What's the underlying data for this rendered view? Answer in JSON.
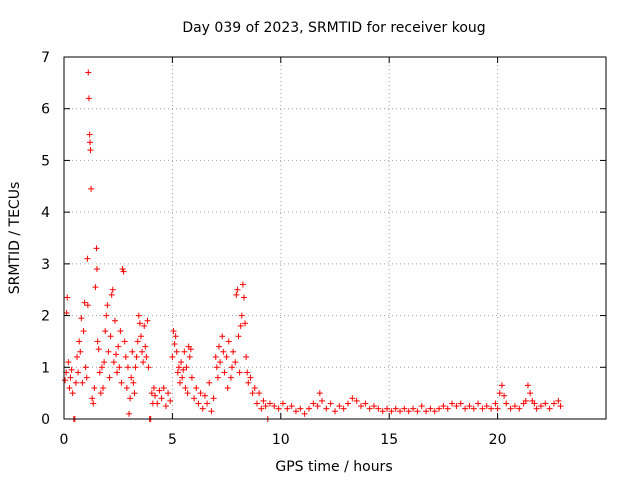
{
  "chart_data": {
    "type": "scatter",
    "title": "Day 039 of 2023, SRMTID for receiver koug",
    "xlabel": "GPS time / hours",
    "ylabel": "SRMTID / TECUs",
    "xlim": [
      0,
      25
    ],
    "ylim": [
      0,
      7
    ],
    "xticks": [
      0,
      5,
      10,
      15,
      20
    ],
    "yticks": [
      0,
      1,
      2,
      3,
      4,
      5,
      6,
      7
    ],
    "grid": true,
    "marker": "+",
    "color": "#ff0000",
    "series": [
      {
        "name": "SRMTID",
        "points": [
          [
            0.05,
            0.75
          ],
          [
            0.1,
            0.9
          ],
          [
            0.12,
            2.05
          ],
          [
            0.15,
            2.35
          ],
          [
            0.2,
            1.1
          ],
          [
            0.25,
            0.6
          ],
          [
            0.3,
            0.8
          ],
          [
            0.35,
            0.95
          ],
          [
            0.4,
            0.5
          ],
          [
            0.45,
            0.0
          ],
          [
            0.5,
            0.0
          ],
          [
            0.55,
            0.7
          ],
          [
            0.6,
            1.2
          ],
          [
            0.65,
            0.9
          ],
          [
            0.7,
            1.5
          ],
          [
            0.75,
            1.3
          ],
          [
            0.8,
            1.95
          ],
          [
            0.85,
            0.7
          ],
          [
            0.9,
            1.7
          ],
          [
            0.95,
            2.25
          ],
          [
            1.0,
            1.0
          ],
          [
            1.05,
            0.8
          ],
          [
            1.08,
            3.1
          ],
          [
            1.1,
            2.2
          ],
          [
            1.12,
            6.7
          ],
          [
            1.15,
            6.2
          ],
          [
            1.18,
            5.5
          ],
          [
            1.2,
            5.35
          ],
          [
            1.22,
            5.2
          ],
          [
            1.25,
            4.45
          ],
          [
            1.3,
            0.4
          ],
          [
            1.35,
            0.3
          ],
          [
            1.4,
            0.6
          ],
          [
            1.45,
            2.55
          ],
          [
            1.5,
            3.3
          ],
          [
            1.52,
            2.9
          ],
          [
            1.55,
            1.5
          ],
          [
            1.6,
            1.35
          ],
          [
            1.65,
            0.9
          ],
          [
            1.7,
            0.5
          ],
          [
            1.75,
            1.0
          ],
          [
            1.8,
            0.6
          ],
          [
            1.85,
            1.1
          ],
          [
            1.9,
            1.7
          ],
          [
            1.95,
            2.0
          ],
          [
            2.0,
            2.2
          ],
          [
            2.05,
            1.3
          ],
          [
            2.1,
            0.8
          ],
          [
            2.15,
            1.6
          ],
          [
            2.2,
            2.4
          ],
          [
            2.25,
            2.5
          ],
          [
            2.3,
            1.1
          ],
          [
            2.35,
            1.9
          ],
          [
            2.4,
            1.25
          ],
          [
            2.45,
            0.9
          ],
          [
            2.5,
            1.4
          ],
          [
            2.55,
            1.0
          ],
          [
            2.6,
            1.7
          ],
          [
            2.65,
            0.7
          ],
          [
            2.7,
            2.9
          ],
          [
            2.75,
            2.85
          ],
          [
            2.8,
            1.5
          ],
          [
            2.85,
            1.2
          ],
          [
            2.9,
            0.6
          ],
          [
            2.95,
            1.0
          ],
          [
            3.0,
            0.1
          ],
          [
            3.05,
            0.4
          ],
          [
            3.1,
            0.8
          ],
          [
            3.15,
            1.3
          ],
          [
            3.2,
            0.7
          ],
          [
            3.25,
            0.5
          ],
          [
            3.3,
            1.0
          ],
          [
            3.35,
            1.2
          ],
          [
            3.4,
            1.5
          ],
          [
            3.45,
            2.0
          ],
          [
            3.5,
            1.85
          ],
          [
            3.55,
            1.6
          ],
          [
            3.6,
            1.3
          ],
          [
            3.65,
            1.1
          ],
          [
            3.7,
            1.8
          ],
          [
            3.75,
            1.4
          ],
          [
            3.8,
            1.2
          ],
          [
            3.85,
            1.9
          ],
          [
            3.9,
            1.0
          ],
          [
            3.95,
            0.0
          ],
          [
            4.0,
            0.0
          ],
          [
            4.05,
            0.5
          ],
          [
            4.1,
            0.3
          ],
          [
            4.15,
            0.6
          ],
          [
            4.2,
            0.45
          ],
          [
            4.3,
            0.3
          ],
          [
            4.4,
            0.55
          ],
          [
            4.5,
            0.4
          ],
          [
            4.6,
            0.6
          ],
          [
            4.7,
            0.25
          ],
          [
            4.8,
            0.5
          ],
          [
            4.9,
            0.35
          ],
          [
            5.0,
            1.2
          ],
          [
            5.05,
            1.7
          ],
          [
            5.1,
            1.45
          ],
          [
            5.15,
            1.6
          ],
          [
            5.2,
            1.3
          ],
          [
            5.25,
            0.9
          ],
          [
            5.3,
            1.0
          ],
          [
            5.35,
            0.7
          ],
          [
            5.4,
            1.1
          ],
          [
            5.45,
            0.8
          ],
          [
            5.5,
            0.95
          ],
          [
            5.55,
            1.3
          ],
          [
            5.6,
            0.6
          ],
          [
            5.65,
            1.0
          ],
          [
            5.7,
            0.5
          ],
          [
            5.75,
            1.4
          ],
          [
            5.8,
            1.2
          ],
          [
            5.85,
            1.35
          ],
          [
            5.9,
            0.8
          ],
          [
            6.0,
            0.4
          ],
          [
            6.1,
            0.6
          ],
          [
            6.2,
            0.3
          ],
          [
            6.3,
            0.5
          ],
          [
            6.4,
            0.2
          ],
          [
            6.5,
            0.45
          ],
          [
            6.6,
            0.3
          ],
          [
            6.7,
            0.7
          ],
          [
            6.8,
            0.15
          ],
          [
            6.9,
            0.4
          ],
          [
            7.0,
            1.2
          ],
          [
            7.05,
            1.0
          ],
          [
            7.1,
            0.8
          ],
          [
            7.15,
            1.4
          ],
          [
            7.2,
            1.1
          ],
          [
            7.3,
            1.6
          ],
          [
            7.35,
            1.3
          ],
          [
            7.4,
            0.9
          ],
          [
            7.5,
            1.2
          ],
          [
            7.55,
            0.6
          ],
          [
            7.6,
            1.5
          ],
          [
            7.7,
            0.8
          ],
          [
            7.75,
            1.0
          ],
          [
            7.8,
            1.3
          ],
          [
            7.9,
            1.1
          ],
          [
            7.95,
            2.4
          ],
          [
            8.0,
            2.5
          ],
          [
            8.05,
            1.6
          ],
          [
            8.1,
            0.9
          ],
          [
            8.15,
            1.8
          ],
          [
            8.2,
            2.0
          ],
          [
            8.25,
            2.6
          ],
          [
            8.3,
            2.35
          ],
          [
            8.35,
            1.85
          ],
          [
            8.4,
            1.2
          ],
          [
            8.45,
            0.9
          ],
          [
            8.5,
            0.7
          ],
          [
            8.6,
            0.8
          ],
          [
            8.7,
            0.5
          ],
          [
            8.8,
            0.6
          ],
          [
            8.9,
            0.3
          ],
          [
            9.0,
            0.5
          ],
          [
            9.1,
            0.2
          ],
          [
            9.2,
            0.35
          ],
          [
            9.3,
            0.25
          ],
          [
            9.4,
            0.0
          ],
          [
            9.5,
            0.3
          ],
          [
            9.7,
            0.25
          ],
          [
            9.9,
            0.2
          ],
          [
            10.1,
            0.3
          ],
          [
            10.3,
            0.2
          ],
          [
            10.5,
            0.25
          ],
          [
            10.7,
            0.15
          ],
          [
            10.9,
            0.2
          ],
          [
            11.1,
            0.1
          ],
          [
            11.3,
            0.2
          ],
          [
            11.5,
            0.3
          ],
          [
            11.7,
            0.25
          ],
          [
            11.8,
            0.5
          ],
          [
            11.9,
            0.35
          ],
          [
            12.1,
            0.2
          ],
          [
            12.3,
            0.3
          ],
          [
            12.5,
            0.15
          ],
          [
            12.7,
            0.25
          ],
          [
            12.9,
            0.2
          ],
          [
            13.1,
            0.3
          ],
          [
            13.3,
            0.4
          ],
          [
            13.5,
            0.35
          ],
          [
            13.7,
            0.25
          ],
          [
            13.9,
            0.3
          ],
          [
            14.1,
            0.2
          ],
          [
            14.3,
            0.25
          ],
          [
            14.5,
            0.2
          ],
          [
            14.7,
            0.15
          ],
          [
            14.9,
            0.2
          ],
          [
            15.1,
            0.15
          ],
          [
            15.3,
            0.2
          ],
          [
            15.5,
            0.15
          ],
          [
            15.7,
            0.2
          ],
          [
            15.9,
            0.15
          ],
          [
            16.1,
            0.2
          ],
          [
            16.3,
            0.15
          ],
          [
            16.5,
            0.25
          ],
          [
            16.7,
            0.15
          ],
          [
            16.9,
            0.2
          ],
          [
            17.1,
            0.15
          ],
          [
            17.3,
            0.2
          ],
          [
            17.5,
            0.25
          ],
          [
            17.7,
            0.2
          ],
          [
            17.9,
            0.3
          ],
          [
            18.1,
            0.25
          ],
          [
            18.3,
            0.3
          ],
          [
            18.5,
            0.2
          ],
          [
            18.7,
            0.25
          ],
          [
            18.9,
            0.2
          ],
          [
            19.1,
            0.3
          ],
          [
            19.3,
            0.2
          ],
          [
            19.5,
            0.25
          ],
          [
            19.7,
            0.2
          ],
          [
            19.9,
            0.3
          ],
          [
            20.0,
            0.2
          ],
          [
            20.1,
            0.5
          ],
          [
            20.2,
            0.65
          ],
          [
            20.3,
            0.45
          ],
          [
            20.4,
            0.3
          ],
          [
            20.6,
            0.2
          ],
          [
            20.8,
            0.25
          ],
          [
            21.0,
            0.2
          ],
          [
            21.2,
            0.3
          ],
          [
            21.3,
            0.35
          ],
          [
            21.4,
            0.65
          ],
          [
            21.5,
            0.5
          ],
          [
            21.6,
            0.35
          ],
          [
            21.7,
            0.3
          ],
          [
            21.8,
            0.2
          ],
          [
            22.0,
            0.25
          ],
          [
            22.2,
            0.3
          ],
          [
            22.4,
            0.2
          ],
          [
            22.6,
            0.3
          ],
          [
            22.8,
            0.35
          ],
          [
            22.9,
            0.25
          ]
        ]
      }
    ]
  }
}
